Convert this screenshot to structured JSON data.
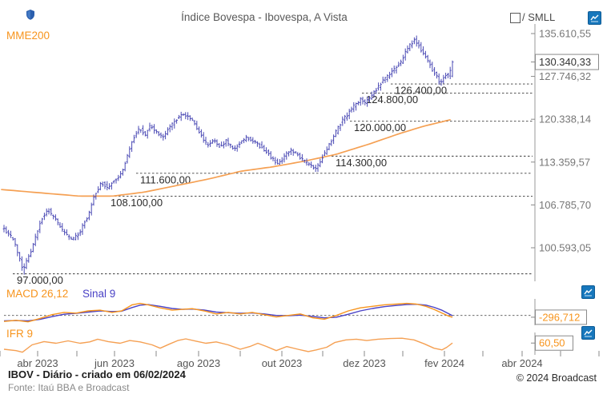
{
  "header": {
    "title": "Índice Bovespa - Ibovespa, A Vista",
    "series_label": "MME200",
    "compare_label": "/ SMLL"
  },
  "footer": {
    "created": "IBOV - Diário - criado em 06/02/2024",
    "source": "Fonte: Itaú BBA e Broadcast",
    "copyright": "© 2024 Broadcast"
  },
  "colors": {
    "candle": "#4a49b4",
    "mme200": "#f5a053",
    "macd": "#f7941d",
    "signal": "#4a42c6",
    "ifr": "#f5a053",
    "accent_orange": "#f7941d",
    "icon_blue": "#1777bc",
    "axis_text": "#777777",
    "level_text": "#2b2b2b",
    "axis_line": "#999999"
  },
  "chart_data": [
    {
      "panel": "price",
      "type": "candlestick",
      "title": "Índice Bovespa - Ibovespa, A Vista",
      "y_scale": "log",
      "y_ticks": [
        {
          "label": "135.610,55",
          "value": 135610.55
        },
        {
          "label": "127.746,32",
          "value": 127746.32
        },
        {
          "label": "120.338,14",
          "value": 120338.14
        },
        {
          "label": "113.359,57",
          "value": 113359.57
        },
        {
          "label": "106.785,70",
          "value": 106785.7
        },
        {
          "label": "100.593,05",
          "value": 100593.05
        }
      ],
      "last_price": {
        "label": "130.340,33",
        "value": 130340.33
      },
      "levels": [
        {
          "label": "126.400,00",
          "value": 126400,
          "x_start": 488
        },
        {
          "label": "124.800,00",
          "value": 124800,
          "x_start": 452
        },
        {
          "label": "120.000,00",
          "value": 120000,
          "x_start": 437
        },
        {
          "label": "114.300,00",
          "value": 114300,
          "x_start": 414
        },
        {
          "label": "111.600,00",
          "value": 111600,
          "x_start": 170
        },
        {
          "label": "108.100,00",
          "value": 108100,
          "x_start": 133
        },
        {
          "label": "97.000,00",
          "value": 97000,
          "x_start": 16
        }
      ],
      "price_path": [
        [
          5,
          103400
        ],
        [
          18,
          101700
        ],
        [
          30,
          97600
        ],
        [
          42,
          100600
        ],
        [
          52,
          104600
        ],
        [
          62,
          106000
        ],
        [
          72,
          104300
        ],
        [
          82,
          102600
        ],
        [
          92,
          101600
        ],
        [
          102,
          103100
        ],
        [
          112,
          105400
        ],
        [
          120,
          108400
        ],
        [
          128,
          110200
        ],
        [
          136,
          109400
        ],
        [
          145,
          110600
        ],
        [
          152,
          111500
        ],
        [
          158,
          113300
        ],
        [
          164,
          115900
        ],
        [
          170,
          117900
        ],
        [
          176,
          118900
        ],
        [
          182,
          117600
        ],
        [
          188,
          119200
        ],
        [
          196,
          118300
        ],
        [
          204,
          117300
        ],
        [
          212,
          118900
        ],
        [
          220,
          120000
        ],
        [
          228,
          121300
        ],
        [
          236,
          120800
        ],
        [
          244,
          119600
        ],
        [
          252,
          117900
        ],
        [
          260,
          115900
        ],
        [
          268,
          116800
        ],
        [
          276,
          115800
        ],
        [
          284,
          116800
        ],
        [
          292,
          115400
        ],
        [
          300,
          116300
        ],
        [
          308,
          117300
        ],
        [
          316,
          116800
        ],
        [
          324,
          116100
        ],
        [
          332,
          115300
        ],
        [
          340,
          114100
        ],
        [
          348,
          113000
        ],
        [
          356,
          114100
        ],
        [
          364,
          115400
        ],
        [
          372,
          114600
        ],
        [
          380,
          113600
        ],
        [
          388,
          112900
        ],
        [
          396,
          112400
        ],
        [
          404,
          114200
        ],
        [
          412,
          116100
        ],
        [
          420,
          118000
        ],
        [
          428,
          120000
        ],
        [
          436,
          121300
        ],
        [
          444,
          122700
        ],
        [
          452,
          123800
        ],
        [
          458,
          123100
        ],
        [
          466,
          124500
        ],
        [
          472,
          125600
        ],
        [
          480,
          127000
        ],
        [
          488,
          128200
        ],
        [
          495,
          129200
        ],
        [
          502,
          130200
        ],
        [
          508,
          132400
        ],
        [
          514,
          133600
        ],
        [
          519,
          134500
        ],
        [
          524,
          133500
        ],
        [
          530,
          131800
        ],
        [
          536,
          130600
        ],
        [
          541,
          129000
        ],
        [
          546,
          127800
        ],
        [
          551,
          126400
        ],
        [
          555,
          127400
        ],
        [
          559,
          128200
        ],
        [
          562,
          127700
        ],
        [
          565,
          130340.33
        ]
      ],
      "mme200": {
        "name": "MME200",
        "last_value": 120338.14,
        "points": [
          [
            2,
            109100
          ],
          [
            50,
            108600
          ],
          [
            100,
            108100
          ],
          [
            140,
            108100
          ],
          [
            180,
            108700
          ],
          [
            220,
            109700
          ],
          [
            260,
            110700
          ],
          [
            300,
            111900
          ],
          [
            340,
            112600
          ],
          [
            380,
            113500
          ],
          [
            420,
            114600
          ],
          [
            460,
            116200
          ],
          [
            500,
            118000
          ],
          [
            530,
            119200
          ],
          [
            565,
            120338.14
          ]
        ]
      }
    },
    {
      "panel": "macd",
      "type": "line",
      "legend": [
        "MACD 26,12",
        "Sinal 9"
      ],
      "last_value_label": "-296,712",
      "last_value": -296.712,
      "ylim": [
        -1500,
        3000
      ],
      "zero_line": true,
      "series": [
        {
          "name": "MACD 26,12",
          "points": [
            [
              5,
              -1000
            ],
            [
              20,
              -812
            ],
            [
              35,
              -1060
            ],
            [
              50,
              -500
            ],
            [
              65,
              125
            ],
            [
              80,
              500
            ],
            [
              95,
              375
            ],
            [
              110,
              750
            ],
            [
              125,
              875
            ],
            [
              140,
              500
            ],
            [
              152,
              750
            ],
            [
              165,
              1750
            ],
            [
              175,
              2000
            ],
            [
              185,
              1750
            ],
            [
              200,
              1250
            ],
            [
              215,
              875
            ],
            [
              228,
              1000
            ],
            [
              240,
              1125
            ],
            [
              255,
              750
            ],
            [
              270,
              250
            ],
            [
              285,
              500
            ],
            [
              300,
              250
            ],
            [
              315,
              500
            ],
            [
              330,
              125
            ],
            [
              345,
              -250
            ],
            [
              360,
              0
            ],
            [
              375,
              250
            ],
            [
              390,
              -375
            ],
            [
              405,
              -625
            ],
            [
              420,
              0
            ],
            [
              435,
              750
            ],
            [
              450,
              1250
            ],
            [
              465,
              1500
            ],
            [
              480,
              1750
            ],
            [
              495,
              1875
            ],
            [
              508,
              2000
            ],
            [
              520,
              1875
            ],
            [
              532,
              1500
            ],
            [
              542,
              1000
            ],
            [
              552,
              375
            ],
            [
              560,
              -100
            ],
            [
              565,
              -296.712
            ]
          ]
        },
        {
          "name": "Sinal 9",
          "points": [
            [
              5,
              -900
            ],
            [
              20,
              -850
            ],
            [
              35,
              -900
            ],
            [
              50,
              -650
            ],
            [
              65,
              -200
            ],
            [
              80,
              200
            ],
            [
              95,
              350
            ],
            [
              110,
              550
            ],
            [
              125,
              750
            ],
            [
              140,
              650
            ],
            [
              152,
              700
            ],
            [
              165,
              1300
            ],
            [
              175,
              1700
            ],
            [
              185,
              1800
            ],
            [
              200,
              1500
            ],
            [
              215,
              1150
            ],
            [
              228,
              1000
            ],
            [
              240,
              1050
            ],
            [
              255,
              900
            ],
            [
              270,
              550
            ],
            [
              285,
              450
            ],
            [
              300,
              350
            ],
            [
              315,
              400
            ],
            [
              330,
              250
            ],
            [
              345,
              0
            ],
            [
              360,
              -50
            ],
            [
              375,
              50
            ],
            [
              390,
              -150
            ],
            [
              405,
              -400
            ],
            [
              420,
              -300
            ],
            [
              435,
              200
            ],
            [
              450,
              750
            ],
            [
              465,
              1150
            ],
            [
              480,
              1450
            ],
            [
              495,
              1650
            ],
            [
              508,
              1800
            ],
            [
              520,
              1850
            ],
            [
              532,
              1700
            ],
            [
              542,
              1350
            ],
            [
              552,
              850
            ],
            [
              560,
              300
            ],
            [
              565,
              -50
            ]
          ]
        }
      ]
    },
    {
      "panel": "ifr",
      "type": "line",
      "legend": [
        "IFR 9"
      ],
      "last_value_label": "60,50",
      "last_value": 60.5,
      "ylim": [
        30,
        85
      ],
      "series": [
        {
          "name": "IFR 9",
          "points": [
            [
              5,
              42
            ],
            [
              20,
              38
            ],
            [
              28,
              33
            ],
            [
              40,
              55
            ],
            [
              55,
              65
            ],
            [
              70,
              60
            ],
            [
              85,
              67
            ],
            [
              100,
              60
            ],
            [
              112,
              64
            ],
            [
              122,
              72
            ],
            [
              135,
              65
            ],
            [
              150,
              60
            ],
            [
              162,
              68
            ],
            [
              175,
              64
            ],
            [
              190,
              55
            ],
            [
              200,
              45
            ],
            [
              212,
              58
            ],
            [
              222,
              68
            ],
            [
              232,
              73
            ],
            [
              245,
              66
            ],
            [
              257,
              60
            ],
            [
              270,
              64
            ],
            [
              285,
              55
            ],
            [
              300,
              42
            ],
            [
              312,
              50
            ],
            [
              322,
              60
            ],
            [
              333,
              50
            ],
            [
              345,
              38
            ],
            [
              358,
              50
            ],
            [
              372,
              42
            ],
            [
              385,
              35
            ],
            [
              395,
              40
            ],
            [
              408,
              48
            ],
            [
              418,
              62
            ],
            [
              432,
              70
            ],
            [
              445,
              72
            ],
            [
              458,
              68
            ],
            [
              472,
              72
            ],
            [
              487,
              74
            ],
            [
              502,
              75
            ],
            [
              517,
              70
            ],
            [
              530,
              58
            ],
            [
              542,
              45
            ],
            [
              552,
              40
            ],
            [
              558,
              48
            ],
            [
              565,
              60.5
            ]
          ]
        }
      ]
    }
  ],
  "x_axis": {
    "labels": [
      "abr 2023",
      "jun 2023",
      "ago 2023",
      "out 2023",
      "dez 2023",
      "fev 2024",
      "abr 2024"
    ],
    "label_x": [
      47,
      143,
      248,
      352,
      455,
      555,
      652
    ],
    "tick_x": [
      0,
      47,
      96,
      143,
      195,
      248,
      300,
      352,
      403,
      455,
      503,
      555,
      603,
      652,
      700,
      748
    ]
  }
}
